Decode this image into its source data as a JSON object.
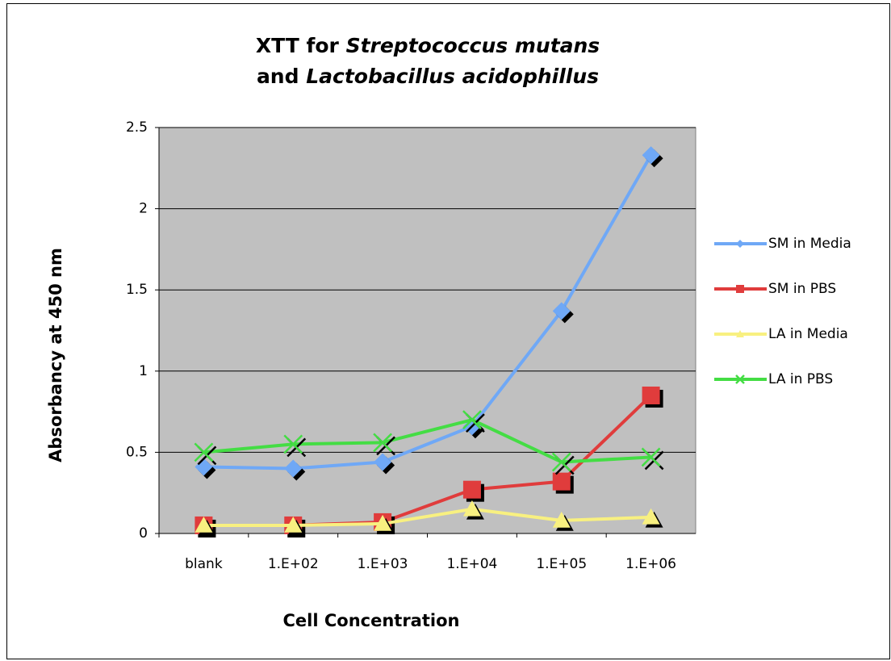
{
  "chart_data": {
    "type": "line",
    "title": [
      [
        "XTT for ",
        "Streptococcus mutans"
      ],
      [
        "and ",
        "Lactobacillus acidophillus"
      ]
    ],
    "x_label": "Cell Concentration",
    "y_label": "Absorbancy at 450 nm",
    "categories": [
      "blank",
      "1.E+02",
      "1.E+03",
      "1.E+04",
      "1.E+05",
      "1.E+06"
    ],
    "series": [
      {
        "name": "SM in Media",
        "color": "#6fa8f6",
        "marker": "diamond",
        "values": [
          0.41,
          0.4,
          0.44,
          0.66,
          1.37,
          2.33
        ]
      },
      {
        "name": "SM in PBS",
        "color": "#e03c3c",
        "marker": "square",
        "values": [
          0.05,
          0.05,
          0.07,
          0.27,
          0.32,
          0.85
        ]
      },
      {
        "name": "LA in Media",
        "color": "#f8f080",
        "marker": "triangle",
        "values": [
          0.05,
          0.05,
          0.06,
          0.15,
          0.08,
          0.1
        ]
      },
      {
        "name": "LA in PBS",
        "color": "#44dd44",
        "marker": "x",
        "values": [
          0.5,
          0.55,
          0.56,
          0.7,
          0.44,
          0.47
        ]
      }
    ],
    "ylim": [
      0,
      2.5
    ],
    "yticks": [
      0,
      0.5,
      1,
      1.5,
      2,
      2.5
    ],
    "grid": true,
    "legend": "right"
  }
}
